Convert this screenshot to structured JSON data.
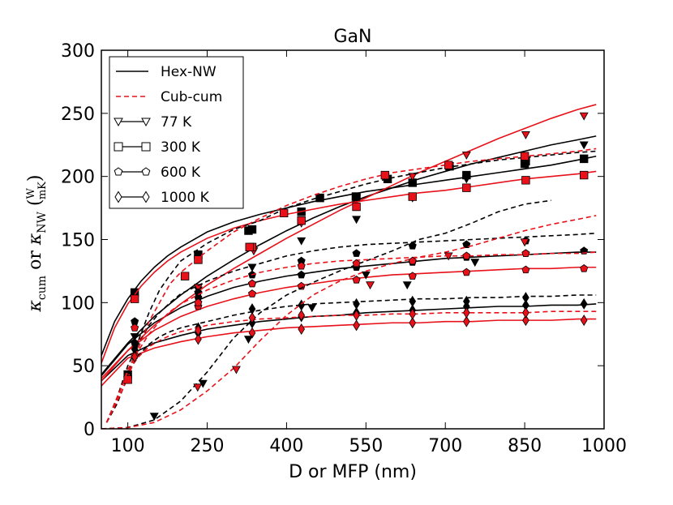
{
  "chart_data": {
    "type": "line",
    "title": "GaN",
    "xlabel": "D or MFP (nm)",
    "ylabel_parts": {
      "kappa": "κ",
      "cum": "cum",
      "or": "or",
      "nw": "NW",
      "frac_num": "W",
      "frac_den": "mK"
    },
    "xlim": [
      50,
      1000
    ],
    "ylim": [
      0,
      300
    ],
    "xticks": [
      100,
      250,
      400,
      550,
      700,
      850,
      1000
    ],
    "yticks": [
      0,
      50,
      100,
      150,
      200,
      250,
      300
    ],
    "grid": false,
    "legend_position": "top-left",
    "legend": [
      {
        "label": "Hex-NW",
        "style": "solid-black"
      },
      {
        "label": "Cub-cum",
        "style": "dashed-red"
      },
      {
        "label": "77 K",
        "marker": "triangle-down"
      },
      {
        "label": "300 K",
        "marker": "square"
      },
      {
        "label": "600 K",
        "marker": "pentagon"
      },
      {
        "label": "1000 K",
        "marker": "diamond"
      }
    ],
    "colors": {
      "black": "#000000",
      "red": "#e8111a"
    },
    "series": [
      {
        "name": "Hex-NW 77 K",
        "color": "black",
        "dash": false,
        "marker": "triangle-down",
        "x": [
          50,
          100,
          150,
          200,
          250,
          300,
          350,
          400,
          450,
          500,
          550,
          600,
          650,
          700,
          750,
          800,
          850,
          900,
          950,
          985
        ],
        "y": [
          43,
          68,
          89,
          106,
          121,
          134,
          146,
          157,
          167,
          176,
          184,
          191,
          198,
          204,
          210,
          215,
          220,
          225,
          229,
          232
        ],
        "marker_x": [
          113,
          233,
          335,
          428,
          532,
          638,
          740,
          852,
          962
        ],
        "marker_y": [
          73,
          110,
          128,
          149,
          166,
          183,
          198,
          210,
          225
        ]
      },
      {
        "name": "Hex-NW 300 K",
        "color": "black",
        "dash": false,
        "marker": "square",
        "x": [
          50,
          75,
          100,
          125,
          150,
          175,
          200,
          250,
          300,
          350,
          400,
          450,
          500,
          550,
          600,
          650,
          700,
          750,
          800,
          850,
          900,
          950,
          985
        ],
        "y": [
          58,
          85,
          103,
          117,
          128,
          137,
          144,
          156,
          164,
          170,
          175,
          180,
          184,
          188,
          191,
          194,
          197,
          200,
          203,
          206,
          209,
          213,
          216
        ],
        "marker_x": [
          113,
          233,
          335,
          428,
          532,
          638,
          740,
          852,
          962
        ],
        "marker_y": [
          108,
          138,
          158,
          172,
          184,
          195,
          201,
          212,
          214
        ]
      },
      {
        "name": "Hex-NW 600 K",
        "color": "black",
        "dash": false,
        "marker": "pentagon",
        "x": [
          50,
          100,
          150,
          200,
          250,
          300,
          350,
          400,
          450,
          500,
          550,
          600,
          650,
          700,
          750,
          800,
          850,
          900,
          950,
          985
        ],
        "y": [
          42,
          67,
          84,
          96,
          105,
          112,
          117,
          121,
          124,
          127,
          129,
          131,
          133,
          135,
          136,
          137,
          138,
          139,
          140,
          140
        ],
        "marker_x": [
          113,
          233,
          335,
          428,
          532,
          638,
          740,
          852,
          962
        ],
        "marker_y": [
          85,
          104,
          115,
          122,
          128,
          132,
          136,
          139,
          141
        ]
      },
      {
        "name": "Hex-NW 1000 K",
        "color": "black",
        "dash": false,
        "marker": "diamond",
        "x": [
          50,
          100,
          150,
          200,
          250,
          300,
          350,
          400,
          450,
          500,
          550,
          600,
          650,
          700,
          750,
          800,
          850,
          900,
          950,
          985
        ],
        "y": [
          38,
          58,
          68,
          74,
          79,
          82,
          85,
          87,
          89,
          90,
          92,
          93,
          94,
          95,
          96,
          97,
          97,
          98,
          98,
          99
        ],
        "marker_x": [
          113,
          233,
          335,
          428,
          532,
          638,
          740,
          852,
          962
        ],
        "marker_y": [
          65,
          76,
          84,
          89,
          92,
          94,
          97,
          98,
          99
        ]
      },
      {
        "name": "Hex-NW 77 K (red)",
        "color": "red",
        "dash": false,
        "marker": "triangle-down",
        "x": [
          50,
          100,
          150,
          200,
          250,
          300,
          350,
          400,
          450,
          500,
          550,
          600,
          650,
          700,
          750,
          800,
          850,
          900,
          950,
          985
        ],
        "y": [
          38,
          62,
          82,
          99,
          114,
          127,
          139,
          151,
          162,
          173,
          183,
          193,
          203,
          212,
          221,
          230,
          238,
          246,
          253,
          257
        ],
        "marker_x": [
          233,
          338,
          428,
          532,
          638,
          740,
          852,
          962
        ],
        "marker_y": [
          112,
          141,
          163,
          183,
          200,
          217,
          233,
          248
        ]
      },
      {
        "name": "Hex-NW 300 K (red)",
        "color": "red",
        "dash": false,
        "marker": "square",
        "x": [
          50,
          75,
          100,
          125,
          150,
          175,
          200,
          250,
          300,
          350,
          400,
          450,
          500,
          550,
          600,
          650,
          700,
          750,
          800,
          850,
          900,
          950,
          985
        ],
        "y": [
          52,
          80,
          99,
          113,
          124,
          133,
          140,
          151,
          159,
          165,
          170,
          174,
          178,
          181,
          184,
          187,
          189,
          192,
          195,
          198,
          200,
          202,
          204
        ],
        "marker_x": [
          113,
          233,
          335,
          428,
          532,
          638,
          740,
          852,
          962
        ],
        "marker_y": [
          103,
          134,
          144,
          165,
          176,
          184,
          191,
          197,
          201
        ]
      },
      {
        "name": "Hex-NW 600 K (red)",
        "color": "red",
        "dash": false,
        "marker": "pentagon",
        "x": [
          50,
          100,
          150,
          200,
          250,
          300,
          350,
          400,
          450,
          500,
          550,
          600,
          650,
          700,
          750,
          800,
          850,
          900,
          950,
          985
        ],
        "y": [
          40,
          62,
          78,
          89,
          97,
          103,
          108,
          112,
          115,
          118,
          120,
          122,
          123,
          124,
          125,
          126,
          127,
          127,
          128,
          128
        ],
        "marker_x": [
          113,
          233,
          335,
          428,
          532,
          638,
          740,
          852,
          962
        ],
        "marker_y": [
          80,
          97,
          107,
          113,
          118,
          121,
          124,
          126,
          127
        ]
      },
      {
        "name": "Hex-NW 1000 K (red)",
        "color": "red",
        "dash": false,
        "marker": "diamond",
        "x": [
          50,
          100,
          150,
          200,
          250,
          300,
          350,
          400,
          450,
          500,
          550,
          600,
          650,
          700,
          750,
          800,
          850,
          900,
          950,
          985
        ],
        "y": [
          34,
          56,
          64,
          69,
          73,
          76,
          78,
          80,
          81,
          82,
          83,
          84,
          84,
          85,
          85,
          86,
          86,
          86,
          87,
          87
        ],
        "marker_x": [
          113,
          233,
          335,
          428,
          532,
          638,
          740,
          852,
          962
        ],
        "marker_y": [
          63,
          71,
          76,
          79,
          82,
          84,
          85,
          86,
          86
        ]
      },
      {
        "name": "Cub-cum 77 K (black)",
        "color": "black",
        "dash": true,
        "marker": "triangle-down",
        "x": [
          50,
          100,
          150,
          200,
          250,
          300,
          350,
          400,
          450,
          500,
          550,
          600,
          650,
          700,
          750,
          800,
          850,
          900
        ],
        "y": [
          0,
          1,
          7,
          22,
          45,
          72,
          92,
          106,
          116,
          125,
          133,
          141,
          150,
          155,
          163,
          172,
          178,
          181
        ],
        "marker_x": [
          150,
          242,
          328,
          448,
          550,
          628,
          756
        ],
        "marker_y": [
          10,
          36,
          71,
          96,
          122,
          114,
          132
        ]
      },
      {
        "name": "Cub-cum 300 K (black)",
        "color": "black",
        "dash": true,
        "marker": "square",
        "x": [
          60,
          80,
          100,
          120,
          140,
          160,
          180,
          200,
          250,
          300,
          350,
          400,
          450,
          500,
          550,
          600,
          650,
          700,
          750,
          800,
          850,
          900,
          950,
          985
        ],
        "y": [
          5,
          20,
          42,
          70,
          92,
          110,
          122,
          133,
          147,
          158,
          165,
          175,
          182,
          188,
          194,
          199,
          203,
          207,
          210,
          213,
          215,
          217,
          219,
          220
        ],
        "marker_x": [
          100,
          328,
          463,
          531,
          591,
          708,
          850
        ],
        "marker_y": [
          43,
          157,
          183,
          184,
          198,
          208,
          210
        ]
      },
      {
        "name": "Cub-cum 600 K (black)",
        "color": "black",
        "dash": true,
        "marker": "pentagon",
        "x": [
          60,
          80,
          100,
          120,
          140,
          160,
          180,
          200,
          250,
          300,
          350,
          400,
          450,
          500,
          550,
          600,
          650,
          700,
          750,
          800,
          850,
          900,
          950,
          985
        ],
        "y": [
          5,
          25,
          50,
          67,
          82,
          92,
          100,
          107,
          117,
          125,
          131,
          137,
          141,
          144,
          146,
          147,
          148,
          149,
          150,
          151,
          152,
          153,
          154,
          155
        ],
        "marker_x": [
          113,
          233,
          335,
          428,
          532,
          638,
          740,
          852
        ],
        "marker_y": [
          68,
          108,
          122,
          133,
          139,
          145,
          146,
          149
        ]
      },
      {
        "name": "Cub-cum 1000 K (black)",
        "color": "black",
        "dash": true,
        "marker": "diamond",
        "x": [
          60,
          80,
          100,
          120,
          140,
          160,
          180,
          200,
          250,
          300,
          350,
          400,
          450,
          500,
          550,
          600,
          650,
          700,
          750,
          800,
          850,
          900,
          950,
          985
        ],
        "y": [
          5,
          25,
          45,
          58,
          67,
          73,
          77,
          80,
          85,
          90,
          94,
          97,
          99,
          100,
          101,
          102,
          103,
          103,
          104,
          104,
          105,
          105,
          106,
          106
        ],
        "marker_x": [
          113,
          233,
          335,
          428,
          532,
          638,
          740,
          852
        ],
        "marker_y": [
          63,
          80,
          95,
          98,
          99,
          101,
          101,
          104
        ]
      },
      {
        "name": "Cub-cum 77 K (red)",
        "color": "red",
        "dash": true,
        "marker": "triangle-down",
        "x": [
          50,
          100,
          150,
          200,
          250,
          300,
          350,
          400,
          450,
          500,
          550,
          600,
          650,
          700,
          750,
          800,
          850,
          900,
          950,
          985
        ],
        "y": [
          0,
          1,
          5,
          15,
          30,
          48,
          70,
          90,
          106,
          117,
          125,
          131,
          136,
          140,
          145,
          151,
          157,
          162,
          166,
          169
        ],
        "marker_x": [
          232,
          305,
          558,
          706,
          850
        ],
        "marker_y": [
          33,
          47,
          114,
          137,
          148
        ]
      },
      {
        "name": "Cub-cum 300 K (red)",
        "color": "red",
        "dash": true,
        "marker": "square",
        "x": [
          60,
          80,
          100,
          120,
          140,
          160,
          180,
          200,
          250,
          300,
          350,
          400,
          450,
          500,
          550,
          600,
          650,
          700,
          750,
          800,
          850,
          900,
          950,
          985
        ],
        "y": [
          5,
          22,
          40,
          64,
          85,
          100,
          115,
          124,
          141,
          156,
          167,
          177,
          185,
          192,
          198,
          203,
          206,
          209,
          212,
          214,
          216,
          218,
          220,
          222
        ],
        "marker_x": [
          100,
          208,
          330,
          395,
          586,
          706,
          850
        ],
        "marker_y": [
          39,
          121,
          144,
          171,
          201,
          209,
          216
        ]
      },
      {
        "name": "Cub-cum 600 K (red)",
        "color": "red",
        "dash": true,
        "marker": "pentagon",
        "x": [
          60,
          80,
          100,
          120,
          140,
          160,
          180,
          200,
          250,
          300,
          350,
          400,
          450,
          500,
          550,
          600,
          650,
          700,
          750,
          800,
          850,
          900,
          950,
          985
        ],
        "y": [
          5,
          23,
          47,
          62,
          75,
          85,
          93,
          99,
          110,
          118,
          124,
          128,
          131,
          133,
          134,
          135,
          136,
          137,
          137,
          138,
          138,
          139,
          139,
          140
        ],
        "marker_x": [
          113,
          233,
          335,
          428,
          532,
          638,
          740,
          852
        ],
        "marker_y": [
          58,
          100,
          115,
          129,
          131,
          133,
          137,
          139
        ]
      },
      {
        "name": "Cub-cum 1000 K (red)",
        "color": "red",
        "dash": true,
        "marker": "diamond",
        "x": [
          60,
          80,
          100,
          120,
          140,
          160,
          180,
          200,
          250,
          300,
          350,
          400,
          450,
          500,
          550,
          600,
          650,
          700,
          750,
          800,
          850,
          900,
          950,
          985
        ],
        "y": [
          5,
          25,
          45,
          57,
          65,
          70,
          74,
          77,
          82,
          85,
          87,
          88,
          89,
          90,
          90,
          91,
          91,
          92,
          92,
          92,
          92,
          93,
          93,
          93
        ],
        "marker_x": [
          113,
          233,
          335,
          428,
          532,
          638,
          740,
          852
        ],
        "marker_y": [
          57,
          78,
          88,
          90,
          90,
          91,
          92,
          92
        ]
      }
    ]
  }
}
